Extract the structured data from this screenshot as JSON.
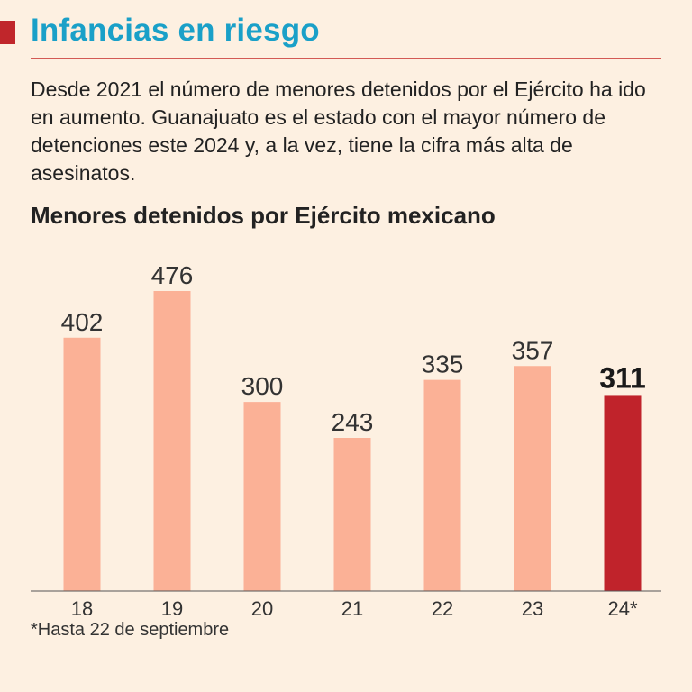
{
  "header": {
    "title": "Infancias en riesgo",
    "intro": "Desde 2021 el número de menores detenidos por el Ejército ha ido en aumento. Guanajuato es el estado con el mayor número de detenciones este 2024 y, a la vez, tiene la cifra más alta de asesinatos."
  },
  "chart_data": {
    "type": "bar",
    "title": "Menores detenidos por Ejército mexicano",
    "xlabel": "",
    "ylabel": "",
    "categories": [
      "18",
      "19",
      "20",
      "21",
      "22",
      "23",
      "24*"
    ],
    "values": [
      402,
      476,
      300,
      243,
      335,
      357,
      311
    ],
    "value_labels": [
      "402",
      "476",
      "300",
      "243",
      "335",
      "357",
      "311"
    ],
    "highlight_index": 6,
    "ylim": [
      0,
      476
    ],
    "grid": false,
    "legend": "none",
    "footnote": "*Hasta 22 de septiembre"
  },
  "colors": {
    "background": "#fdf0e1",
    "bar": "#fbb196",
    "bar_highlight": "#c0232b",
    "title": "#1aa0c8",
    "accent": "#c0262b"
  }
}
